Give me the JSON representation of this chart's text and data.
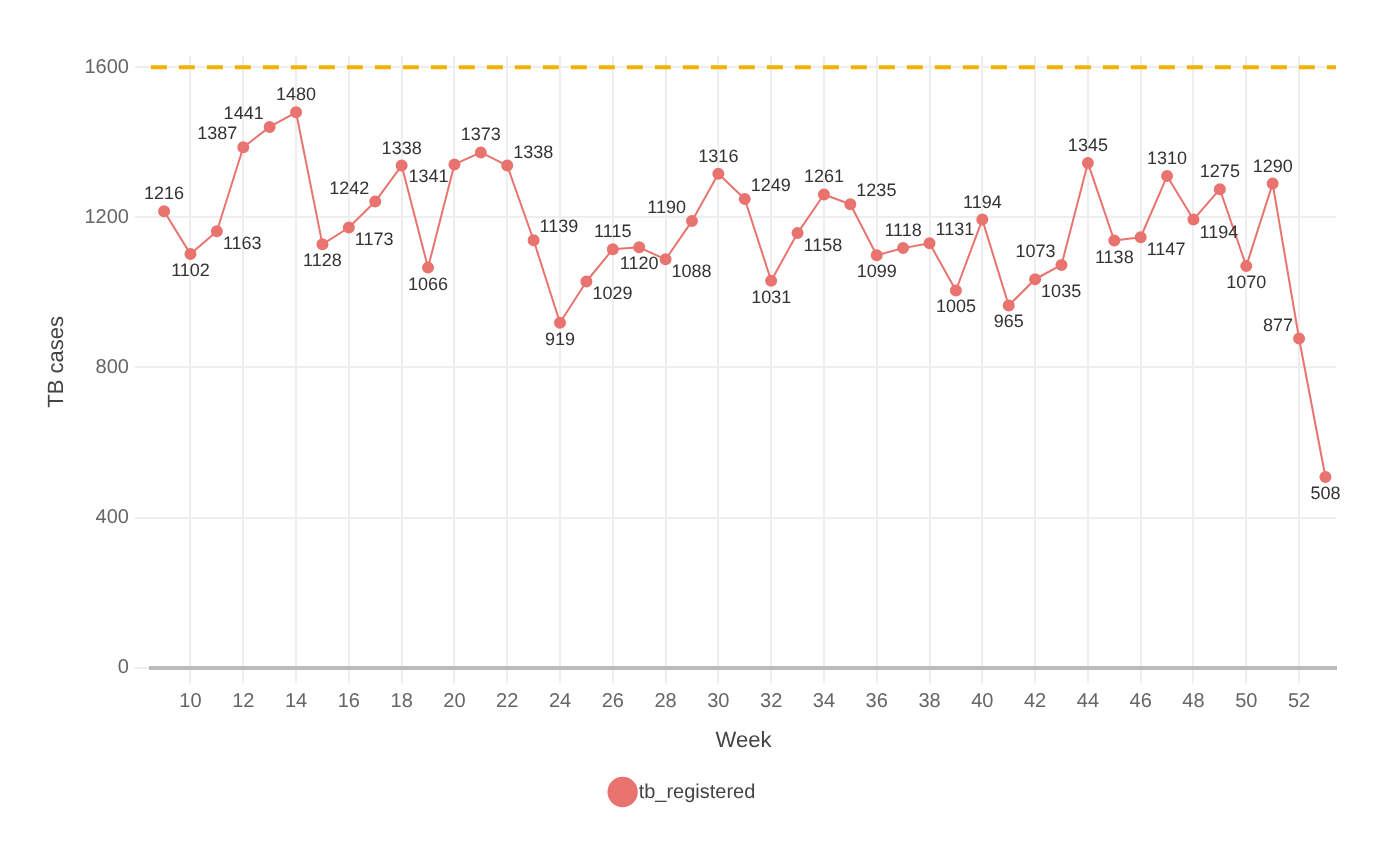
{
  "chart_data": {
    "type": "line",
    "xlabel": "Week",
    "ylabel": "TB cases",
    "x": [
      9,
      10,
      11,
      12,
      13,
      14,
      15,
      16,
      17,
      18,
      19,
      20,
      21,
      22,
      23,
      24,
      25,
      26,
      27,
      28,
      29,
      30,
      31,
      32,
      33,
      34,
      35,
      36,
      37,
      38,
      39,
      40,
      41,
      42,
      43,
      44,
      45,
      46,
      47,
      48,
      49,
      50,
      51,
      52,
      53
    ],
    "series": [
      {
        "name": "tb_registered",
        "color": "#e8736f",
        "values": [
          1216,
          1102,
          1163,
          1387,
          1441,
          1480,
          1128,
          1173,
          1242,
          1338,
          1066,
          1341,
          1373,
          1338,
          1139,
          919,
          1029,
          1115,
          1120,
          1088,
          1190,
          1316,
          1249,
          1031,
          1158,
          1261,
          1235,
          1099,
          1118,
          1131,
          1005,
          1194,
          965,
          1035,
          1073,
          1345,
          1138,
          1147,
          1310,
          1194,
          1275,
          1070,
          1290,
          877,
          508
        ]
      }
    ],
    "xlim": [
      8.5,
      53.4
    ],
    "xticks": [
      10,
      12,
      14,
      16,
      18,
      20,
      22,
      24,
      26,
      28,
      30,
      32,
      34,
      36,
      38,
      40,
      42,
      44,
      46,
      48,
      50,
      52
    ],
    "ylim": [
      0,
      1630
    ],
    "yticks": [
      0,
      400,
      800,
      1200,
      1600
    ],
    "ref_lines": [
      {
        "axis": "y",
        "value": 1600,
        "color": "#f0b400",
        "line_style": "dashed"
      }
    ],
    "data_labels": true,
    "grid": true,
    "legend": "bottom",
    "marker": "circle",
    "line_style": "solid"
  }
}
